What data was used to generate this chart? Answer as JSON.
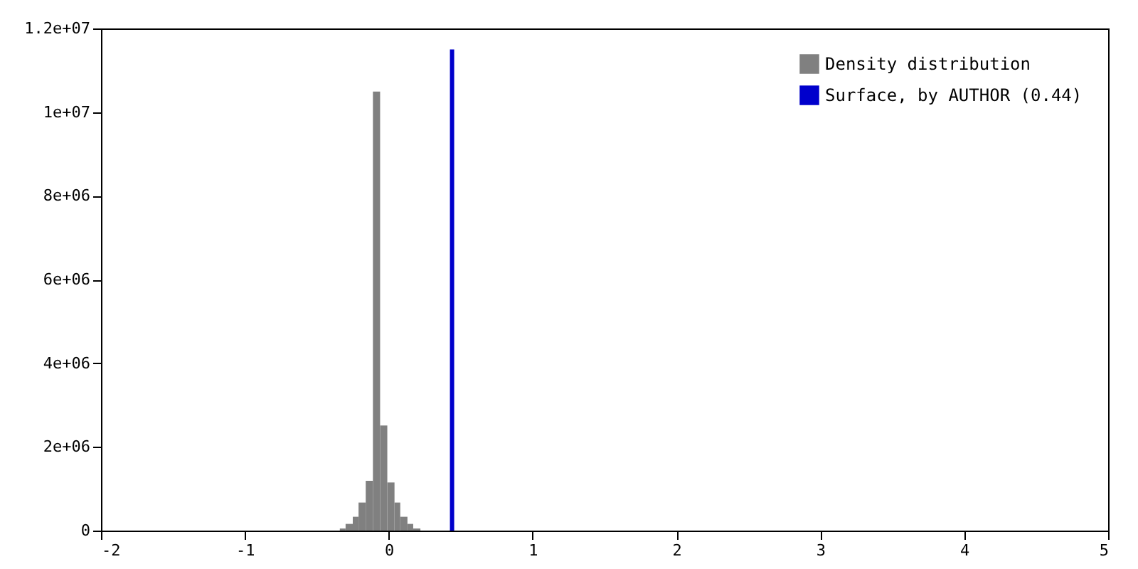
{
  "chart_data": {
    "type": "histogram",
    "xlim": [
      -2,
      5
    ],
    "xticks": [
      -2,
      -1,
      0,
      1,
      2,
      3,
      4,
      5
    ],
    "ylim": [
      0,
      12000000
    ],
    "yticks": [
      0,
      {
        "value": 2000000,
        "label": "2e+06"
      },
      {
        "value": 4000000,
        "label": "4e+06"
      },
      {
        "value": 6000000,
        "label": "6e+06"
      },
      {
        "value": 8000000,
        "label": "8e+06"
      },
      {
        "value": 10000000,
        "label": "1e+07"
      },
      {
        "value": 12000000,
        "label": "1.2e+07"
      }
    ],
    "legend": "top right",
    "grid": false,
    "series": [
      {
        "name": "Density distribution",
        "color": "#808080",
        "bins": [
          -0.34,
          -0.3,
          -0.25,
          -0.21,
          -0.16,
          -0.11,
          -0.06,
          -0.01,
          0.04,
          0.08,
          0.13,
          0.17,
          0.22
        ],
        "values": [
          50000,
          160000,
          330000,
          670000,
          1190000,
          10490000,
          2510000,
          1150000,
          670000,
          330000,
          160000,
          50000
        ]
      },
      {
        "name": "Surface, by AUTHOR (0.44)",
        "type": "line",
        "color": "#0000cc",
        "x": [
          0.44,
          0.44
        ],
        "values": [
          0,
          11500000
        ]
      }
    ]
  }
}
